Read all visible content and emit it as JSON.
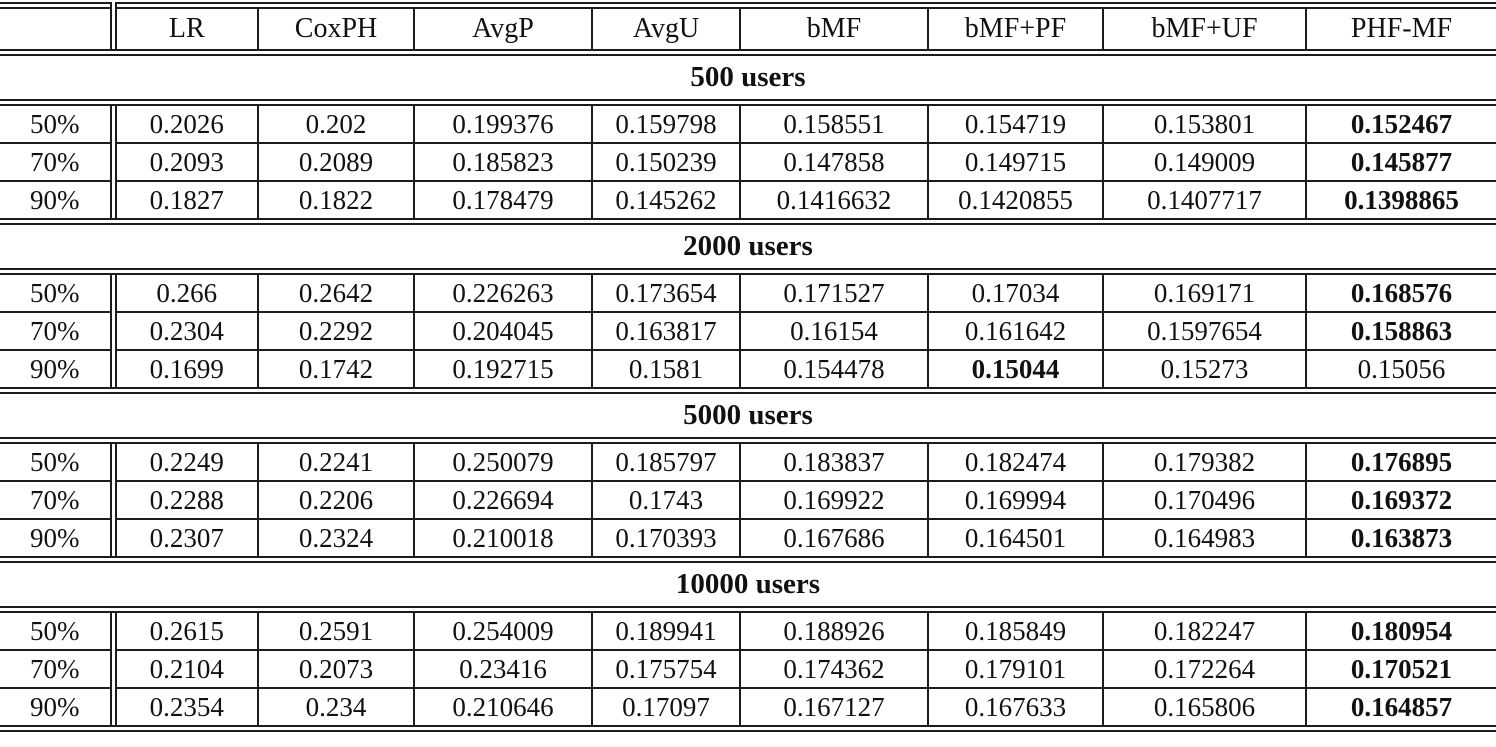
{
  "colors": {
    "background": "#ffffff",
    "text": "#111111",
    "rule_lines": "#1c1c1c"
  },
  "table": {
    "header": {
      "corner": "",
      "columns": [
        "LR",
        "CoxPH",
        "AvgP",
        "AvgU",
        "bMF",
        "bMF+PF",
        "bMF+UF",
        "PHF-MF"
      ]
    },
    "sections": [
      {
        "title": "500 users",
        "rows": [
          {
            "label": "50%",
            "values": [
              "0.2026",
              "0.202",
              "0.199376",
              "0.159798",
              "0.158551",
              "0.154719",
              "0.153801",
              "0.152467"
            ],
            "bold_index": 7
          },
          {
            "label": "70%",
            "values": [
              "0.2093",
              "0.2089",
              "0.185823",
              "0.150239",
              "0.147858",
              "0.149715",
              "0.149009",
              "0.145877"
            ],
            "bold_index": 7
          },
          {
            "label": "90%",
            "values": [
              "0.1827",
              "0.1822",
              "0.178479",
              "0.145262",
              "0.1416632",
              "0.1420855",
              "0.1407717",
              "0.1398865"
            ],
            "bold_index": 7
          }
        ]
      },
      {
        "title": "2000 users",
        "rows": [
          {
            "label": "50%",
            "values": [
              "0.266",
              "0.2642",
              "0.226263",
              "0.173654",
              "0.171527",
              "0.17034",
              "0.169171",
              "0.168576"
            ],
            "bold_index": 7
          },
          {
            "label": "70%",
            "values": [
              "0.2304",
              "0.2292",
              "0.204045",
              "0.163817",
              "0.16154",
              "0.161642",
              "0.1597654",
              "0.158863"
            ],
            "bold_index": 7
          },
          {
            "label": "90%",
            "values": [
              "0.1699",
              "0.1742",
              "0.192715",
              "0.1581",
              "0.154478",
              "0.15044",
              "0.15273",
              "0.15056"
            ],
            "bold_index": 5
          }
        ]
      },
      {
        "title": "5000 users",
        "rows": [
          {
            "label": "50%",
            "values": [
              "0.2249",
              "0.2241",
              "0.250079",
              "0.185797",
              "0.183837",
              "0.182474",
              "0.179382",
              "0.176895"
            ],
            "bold_index": 7
          },
          {
            "label": "70%",
            "values": [
              "0.2288",
              "0.2206",
              "0.226694",
              "0.1743",
              "0.169922",
              "0.169994",
              "0.170496",
              "0.169372"
            ],
            "bold_index": 7
          },
          {
            "label": "90%",
            "values": [
              "0.2307",
              "0.2324",
              "0.210018",
              "0.170393",
              "0.167686",
              "0.164501",
              "0.164983",
              "0.163873"
            ],
            "bold_index": 7
          }
        ]
      },
      {
        "title": "10000 users",
        "rows": [
          {
            "label": "50%",
            "values": [
              "0.2615",
              "0.2591",
              "0.254009",
              "0.189941",
              "0.188926",
              "0.185849",
              "0.182247",
              "0.180954"
            ],
            "bold_index": 7
          },
          {
            "label": "70%",
            "values": [
              "0.2104",
              "0.2073",
              "0.23416",
              "0.175754",
              "0.174362",
              "0.179101",
              "0.172264",
              "0.170521"
            ],
            "bold_index": 7
          },
          {
            "label": "90%",
            "values": [
              "0.2354",
              "0.234",
              "0.210646",
              "0.17097",
              "0.167127",
              "0.167633",
              "0.165806",
              "0.164857"
            ],
            "bold_index": 7
          }
        ]
      }
    ]
  }
}
